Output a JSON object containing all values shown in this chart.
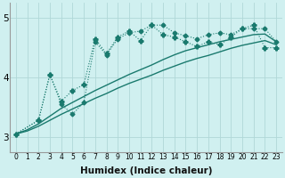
{
  "xlabel": "Humidex (Indice chaleur)",
  "ylabel": "",
  "bg_color": "#d0f0f0",
  "grid_color": "#b0d8d8",
  "line_color": "#1a7a6e",
  "xlim": [
    -0.5,
    23.5
  ],
  "ylim": [
    2.75,
    5.25
  ],
  "yticks": [
    3,
    4,
    5
  ],
  "xticks": [
    0,
    1,
    2,
    3,
    4,
    5,
    6,
    7,
    8,
    9,
    10,
    11,
    12,
    13,
    14,
    15,
    16,
    17,
    18,
    19,
    20,
    21,
    22,
    23
  ],
  "series": [
    {
      "x": [
        0,
        1,
        2,
        3,
        4,
        5,
        6,
        7,
        8,
        9,
        10,
        11,
        12,
        13,
        14,
        15,
        16,
        17,
        18,
        19,
        20,
        21,
        22,
        23
      ],
      "y": [
        3.05,
        3.1,
        3.18,
        3.28,
        3.38,
        3.47,
        3.56,
        3.65,
        3.73,
        3.82,
        3.9,
        3.97,
        4.04,
        4.12,
        4.19,
        4.26,
        4.32,
        4.37,
        4.43,
        4.49,
        4.54,
        4.58,
        4.62,
        4.55
      ],
      "marker": null,
      "linewidth": 1.0,
      "linestyle": "-"
    },
    {
      "x": [
        0,
        1,
        2,
        3,
        4,
        5,
        6,
        7,
        8,
        9,
        10,
        11,
        12,
        13,
        14,
        15,
        16,
        17,
        18,
        19,
        20,
        21,
        22,
        23
      ],
      "y": [
        3.05,
        3.12,
        3.22,
        3.35,
        3.48,
        3.58,
        3.68,
        3.78,
        3.87,
        3.96,
        4.05,
        4.13,
        4.21,
        4.3,
        4.38,
        4.45,
        4.5,
        4.55,
        4.6,
        4.64,
        4.68,
        4.72,
        4.73,
        4.6
      ],
      "marker": null,
      "linewidth": 1.0,
      "linestyle": "-"
    },
    {
      "x": [
        0,
        2,
        3,
        4,
        5,
        6,
        7,
        8,
        9,
        10,
        11,
        12,
        13,
        14,
        15,
        16,
        17,
        18,
        19,
        20,
        21,
        22,
        23
      ],
      "y": [
        3.05,
        3.28,
        4.05,
        3.55,
        3.38,
        3.58,
        4.6,
        4.38,
        4.65,
        4.75,
        4.78,
        4.88,
        4.88,
        4.75,
        4.7,
        4.65,
        4.72,
        4.75,
        4.72,
        4.82,
        4.82,
        4.82,
        4.6
      ],
      "marker": "D",
      "markersize": 2.5,
      "linewidth": 0.8,
      "linestyle": ":"
    },
    {
      "x": [
        0,
        2,
        3,
        4,
        5,
        6,
        7,
        8,
        9,
        10,
        11,
        12,
        13,
        14,
        15,
        16,
        17,
        18,
        19,
        20,
        21,
        22,
        23
      ],
      "y": [
        3.05,
        3.28,
        4.05,
        3.6,
        3.78,
        3.88,
        4.65,
        4.4,
        4.68,
        4.78,
        4.62,
        4.88,
        4.72,
        4.68,
        4.6,
        4.52,
        4.6,
        4.55,
        4.68,
        4.82,
        4.88,
        4.5,
        4.5
      ],
      "marker": "P",
      "markersize": 3.5,
      "linewidth": 0.8,
      "linestyle": ":"
    }
  ]
}
